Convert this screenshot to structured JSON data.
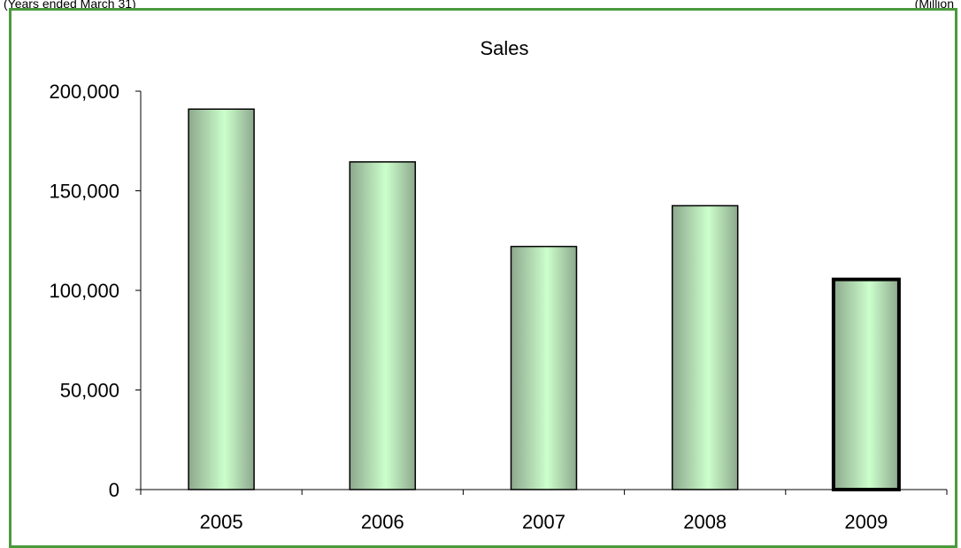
{
  "header": {
    "left_note": "(Years ended March 31)",
    "right_note": "(Million"
  },
  "colors": {
    "frame": "#4a9a3c",
    "bar_light": "#ccffcc",
    "bar_dark": "#8da88d",
    "bar_edge": "#000000"
  },
  "chart_data": {
    "type": "bar",
    "title": "Sales",
    "xlabel": "",
    "ylabel": "",
    "categories": [
      "2005",
      "2006",
      "2007",
      "2008",
      "2009"
    ],
    "values": [
      191000,
      164500,
      122000,
      142500,
      105500
    ],
    "ylim": [
      0,
      200000
    ],
    "yticks": [
      0,
      50000,
      100000,
      150000,
      200000
    ],
    "ytick_labels": [
      "0",
      "50,000",
      "100,000",
      "150,000",
      "200,000"
    ],
    "grid": false,
    "legend": "none",
    "highlighted_category": "2009"
  }
}
